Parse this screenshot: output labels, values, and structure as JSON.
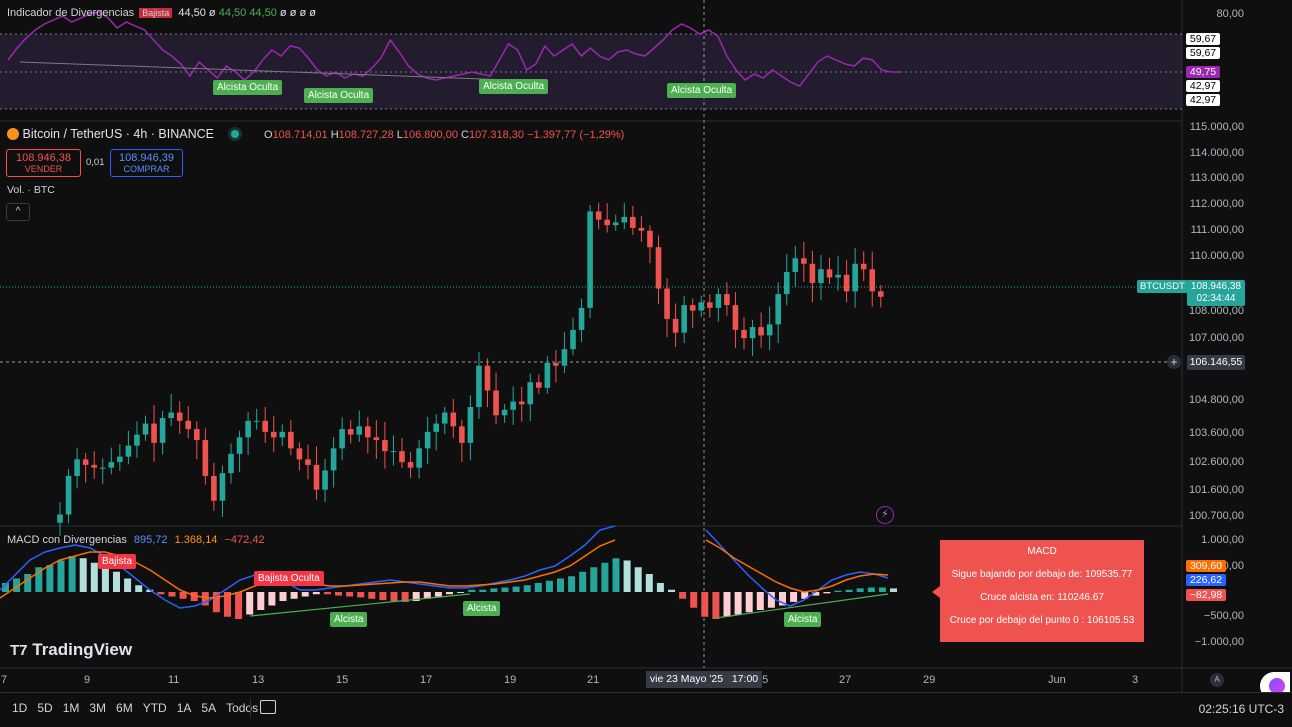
{
  "rsi": {
    "title": "Indicador de Divergencias",
    "bajista_tag": "Bajista",
    "values": [
      "44,50",
      "ø",
      "44,50",
      "44,50",
      "ø",
      "ø",
      "ø",
      "ø"
    ],
    "axis": [
      "80,00"
    ],
    "levels": [
      "59,67",
      "59,67",
      "49,75",
      "42,97",
      "42,97"
    ],
    "tags": [
      "Alcista Oculta",
      "Alcista Oculta",
      "Alcista Oculta",
      "Alcista Oculta"
    ]
  },
  "main": {
    "symbol": "Bitcoin / TetherUS · 4h · BINANCE",
    "o_label": "O",
    "o": "108.714,01",
    "h_label": "H",
    "h": "108.727,28",
    "l_label": "L",
    "l": "106.800,00",
    "c_label": "C",
    "c": "107.318,30",
    "change": "−1.397,77 (−1,29%)",
    "sell_price": "108.946,38",
    "sell_label": "VENDER",
    "spread": "0,01",
    "buy_price": "108.946,39",
    "buy_label": "COMPRAR",
    "vol_label": "Vol. · BTC",
    "axis": [
      "115.000,00",
      "114.000,00",
      "113.000,00",
      "112.000,00",
      "111.000,00",
      "110.000,00",
      "108.000,00",
      "107.000,00",
      "104.800,00",
      "103.600,00",
      "102.600,00",
      "101.600,00",
      "100.700,00"
    ],
    "ticker": "BTCUSDT",
    "last_price": "108.946,38",
    "countdown": "02:34:44",
    "crosshair_price": "106.146,55"
  },
  "macd": {
    "title": "MACD con Divergencias",
    "v1": "895,72",
    "v2": "1.368,14",
    "v3": "−472,42",
    "axis": [
      "1.000,00",
      "500,00",
      "−500,00",
      "−1.000,00"
    ],
    "box_orange": "309,60",
    "box_blue": "226,62",
    "box_red": "−82,98",
    "tags": {
      "bajista": "Bajista",
      "bajista_oculta": "Bajista Oculta",
      "alcista1": "Alcista",
      "alcista2": "Alcista",
      "alcista3": "Alcista"
    },
    "popup": {
      "title": "MACD",
      "line1": "Sigue bajando por debajo de: 109535.77",
      "line2": "Cruce alcista en: 110246.67",
      "line3": "Cruce por debajo del punto 0 : 106105.53"
    }
  },
  "time_axis": {
    "labels": [
      "7",
      "9",
      "11",
      "13",
      "15",
      "17",
      "19",
      "21",
      "25",
      "27",
      "29",
      "Jun",
      "3"
    ],
    "crosshair": "vie 23 Mayo '25",
    "crosshair_time": "17:00",
    "a_label": "A"
  },
  "bottom": {
    "timeframes": [
      "1D",
      "5D",
      "1M",
      "3M",
      "6M",
      "YTD",
      "1A",
      "5A",
      "Todos"
    ],
    "clock": "02:25:16 UTC-3"
  },
  "brand": "TradingView",
  "colors": {
    "up": "#26a69a",
    "down": "#ef5350",
    "rsi": "#9c27b0",
    "macd_blue": "#2962ff",
    "macd_orange": "#ff6d00",
    "tag_green": "#4caf50",
    "tag_red": "#f23645"
  }
}
